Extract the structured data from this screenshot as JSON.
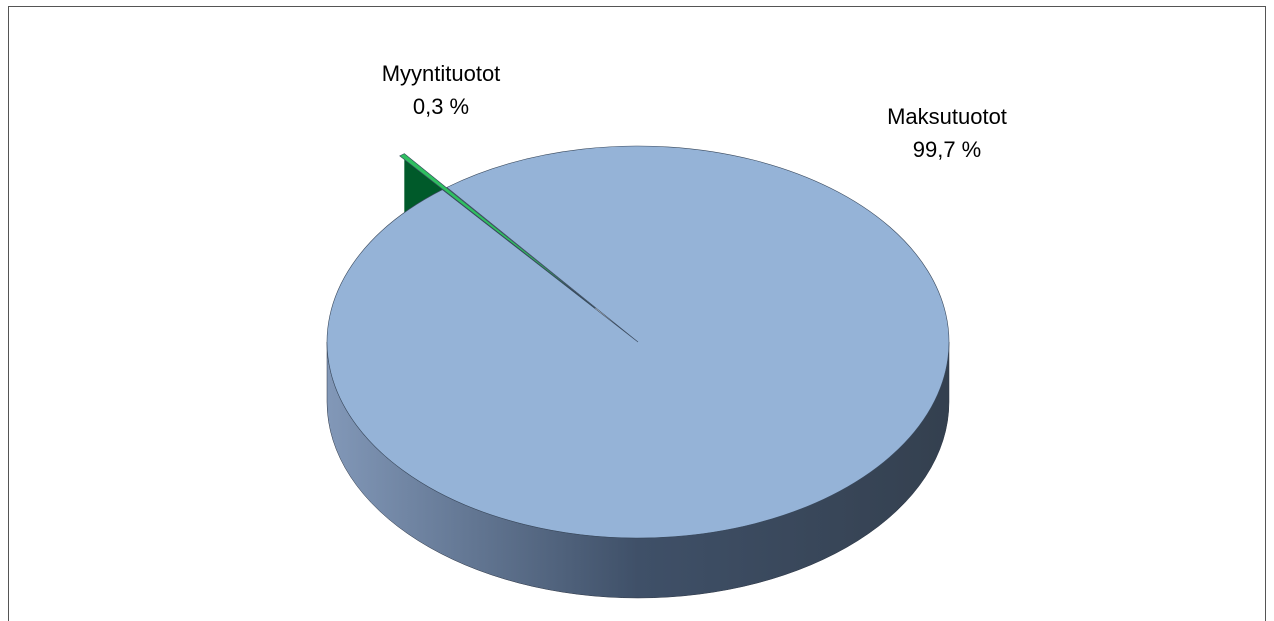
{
  "chart_data": {
    "type": "pie",
    "categories": [
      "Myyntituotot",
      "Maksutuotot"
    ],
    "values": [
      0.3,
      99.7
    ],
    "value_labels": [
      "0,3 %",
      "99,7 %"
    ],
    "colors": [
      "#2fbf60",
      "#95b3d7"
    ],
    "side_colors": [
      "#005a2a",
      "#5c7090"
    ]
  }
}
